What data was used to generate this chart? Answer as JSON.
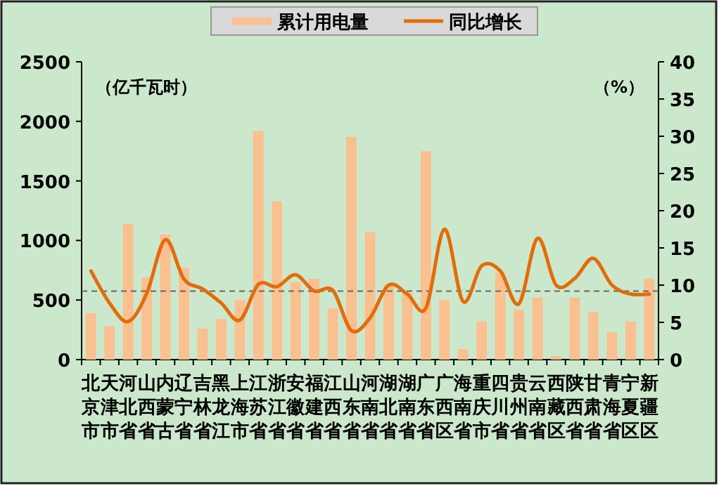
{
  "chart_data": {
    "type": "bar",
    "categories": [
      "北京市",
      "天津市",
      "河北省",
      "山西省",
      "内蒙古",
      "辽宁省",
      "吉林省",
      "黑龙江",
      "上海市",
      "江苏省",
      "浙江省",
      "安徽省",
      "福建省",
      "江西省",
      "山东省",
      "河南省",
      "湖北省",
      "湖南省",
      "广东省",
      "广西区",
      "海南省",
      "重庆市",
      "四川省",
      "贵州省",
      "云南省",
      "西藏区",
      "陕西省",
      "甘肃省",
      "青海省",
      "宁夏区",
      "新疆区"
    ],
    "series": [
      {
        "name": "累计用电量",
        "color": "#fac090",
        "values": [
          390,
          280,
          1140,
          690,
          1050,
          770,
          260,
          340,
          500,
          1920,
          1330,
          650,
          680,
          430,
          1870,
          1070,
          630,
          560,
          1750,
          500,
          90,
          320,
          730,
          420,
          520,
          30,
          520,
          400,
          230,
          320,
          680
        ]
      },
      {
        "name": "同比增长",
        "type": "line",
        "axis": "y2",
        "color": "#e46c0a",
        "values": [
          11.9,
          7.6,
          5.1,
          8.9,
          16.1,
          10.8,
          9.5,
          7.6,
          5.3,
          10.1,
          9.8,
          11.4,
          9.2,
          9.3,
          3.9,
          5.6,
          10,
          8.8,
          6.9,
          17.5,
          7.8,
          12.6,
          11.9,
          7.5,
          16.3,
          10,
          10.9,
          13.6,
          10,
          8.8,
          8.8
        ]
      }
    ],
    "ylabel": "（亿千瓦时）",
    "y2label": "（%）",
    "ylim": [
      0,
      2500
    ],
    "yticks": [
      0,
      500,
      1000,
      1500,
      2000,
      2500
    ],
    "y2lim": [
      0,
      40
    ],
    "y2ticks": [
      0,
      5,
      10,
      15,
      20,
      25,
      30,
      35,
      40
    ],
    "ref_lines": [
      {
        "axis": "y2",
        "value": 9.2,
        "color": "#666666",
        "line_style": "dashed"
      }
    ],
    "grid": false,
    "legend": "top"
  }
}
